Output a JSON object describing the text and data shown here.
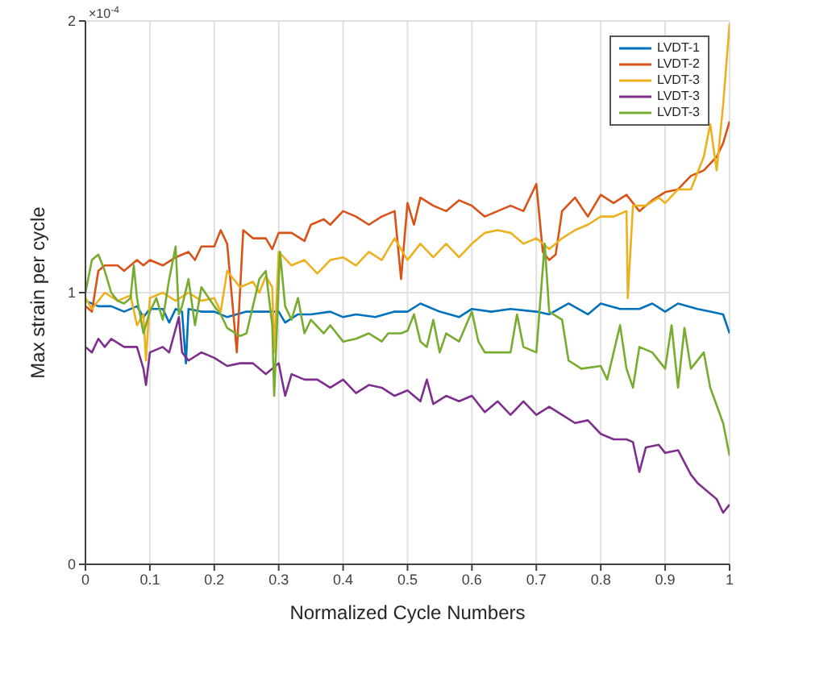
{
  "chart_data": {
    "type": "line",
    "xlabel": "Normalized Cycle Numbers",
    "ylabel": "Max strain per cycle",
    "annotations": [
      "×10$^{-4}$"
    ],
    "xlim": [
      0,
      1
    ],
    "xticks": [
      0,
      0.1,
      0.2,
      0.3,
      0.4,
      0.5,
      0.6,
      0.7,
      0.8,
      0.9,
      1
    ],
    "ylim": [
      0,
      2
    ],
    "yticks": [
      0,
      1,
      2
    ],
    "grid": true,
    "legend": "top right",
    "line_style": "solid",
    "marker": "none",
    "series": [
      {
        "name": "LVDT-1",
        "color": "#0072bd",
        "x": [
          0,
          0.02,
          0.04,
          0.06,
          0.08,
          0.09,
          0.1,
          0.12,
          0.13,
          0.14,
          0.15,
          0.156,
          0.16,
          0.18,
          0.2,
          0.22,
          0.25,
          0.28,
          0.3,
          0.31,
          0.33,
          0.35,
          0.38,
          0.4,
          0.42,
          0.45,
          0.48,
          0.5,
          0.52,
          0.55,
          0.58,
          0.6,
          0.63,
          0.66,
          0.7,
          0.72,
          0.75,
          0.78,
          0.8,
          0.83,
          0.86,
          0.88,
          0.9,
          0.92,
          0.95,
          0.97,
          0.99,
          1
        ],
        "values": [
          0.97,
          0.95,
          0.95,
          0.93,
          0.95,
          0.91,
          0.94,
          0.94,
          0.89,
          0.94,
          0.93,
          0.74,
          0.94,
          0.93,
          0.93,
          0.91,
          0.93,
          0.93,
          0.93,
          0.89,
          0.92,
          0.92,
          0.93,
          0.91,
          0.92,
          0.91,
          0.93,
          0.93,
          0.96,
          0.93,
          0.91,
          0.94,
          0.93,
          0.94,
          0.93,
          0.92,
          0.96,
          0.92,
          0.96,
          0.94,
          0.94,
          0.96,
          0.93,
          0.96,
          0.94,
          0.93,
          0.92,
          0.85
        ]
      },
      {
        "name": "LVDT-2",
        "color": "#d95319",
        "x": [
          0,
          0.01,
          0.02,
          0.03,
          0.05,
          0.06,
          0.08,
          0.09,
          0.1,
          0.12,
          0.14,
          0.16,
          0.17,
          0.18,
          0.2,
          0.21,
          0.22,
          0.235,
          0.245,
          0.26,
          0.28,
          0.29,
          0.3,
          0.32,
          0.34,
          0.35,
          0.37,
          0.38,
          0.4,
          0.42,
          0.44,
          0.46,
          0.48,
          0.49,
          0.5,
          0.51,
          0.52,
          0.54,
          0.56,
          0.58,
          0.6,
          0.62,
          0.64,
          0.66,
          0.68,
          0.7,
          0.71,
          0.72,
          0.73,
          0.74,
          0.76,
          0.78,
          0.8,
          0.82,
          0.84,
          0.86,
          0.88,
          0.9,
          0.92,
          0.94,
          0.96,
          0.98,
          0.99,
          1
        ],
        "values": [
          0.95,
          0.93,
          1.08,
          1.1,
          1.1,
          1.08,
          1.12,
          1.1,
          1.12,
          1.1,
          1.13,
          1.15,
          1.12,
          1.17,
          1.17,
          1.23,
          1.18,
          0.78,
          1.23,
          1.2,
          1.2,
          1.16,
          1.22,
          1.22,
          1.19,
          1.25,
          1.27,
          1.25,
          1.3,
          1.28,
          1.25,
          1.28,
          1.3,
          1.05,
          1.33,
          1.25,
          1.35,
          1.32,
          1.3,
          1.34,
          1.32,
          1.28,
          1.3,
          1.32,
          1.3,
          1.4,
          1.15,
          1.12,
          1.14,
          1.3,
          1.35,
          1.28,
          1.36,
          1.33,
          1.36,
          1.3,
          1.34,
          1.37,
          1.38,
          1.43,
          1.45,
          1.5,
          1.55,
          1.63
        ]
      },
      {
        "name": "LVDT-3",
        "color": "#edb120",
        "x": [
          0,
          0.01,
          0.03,
          0.05,
          0.07,
          0.08,
          0.09,
          0.094,
          0.1,
          0.12,
          0.14,
          0.16,
          0.18,
          0.2,
          0.21,
          0.22,
          0.24,
          0.26,
          0.27,
          0.28,
          0.29,
          0.293,
          0.3,
          0.32,
          0.34,
          0.36,
          0.38,
          0.4,
          0.42,
          0.44,
          0.46,
          0.48,
          0.5,
          0.52,
          0.54,
          0.56,
          0.58,
          0.6,
          0.62,
          0.64,
          0.66,
          0.68,
          0.7,
          0.72,
          0.74,
          0.76,
          0.78,
          0.8,
          0.82,
          0.84,
          0.842,
          0.85,
          0.87,
          0.89,
          0.9,
          0.92,
          0.94,
          0.96,
          0.97,
          0.98,
          0.99,
          1
        ],
        "values": [
          0.98,
          0.94,
          1.0,
          0.97,
          0.99,
          0.88,
          0.92,
          0.75,
          0.98,
          1.0,
          0.97,
          1.0,
          0.97,
          0.98,
          0.93,
          1.08,
          1.02,
          1.04,
          1.0,
          1.06,
          1.02,
          0.78,
          1.15,
          1.1,
          1.12,
          1.07,
          1.12,
          1.13,
          1.1,
          1.15,
          1.12,
          1.2,
          1.12,
          1.18,
          1.13,
          1.18,
          1.13,
          1.18,
          1.22,
          1.23,
          1.22,
          1.18,
          1.2,
          1.16,
          1.2,
          1.23,
          1.25,
          1.28,
          1.28,
          1.3,
          0.98,
          1.32,
          1.32,
          1.35,
          1.33,
          1.38,
          1.38,
          1.5,
          1.62,
          1.45,
          1.69,
          1.99
        ]
      },
      {
        "name": "LVDT-3",
        "color": "#7e2f8e",
        "x": [
          0,
          0.01,
          0.02,
          0.03,
          0.04,
          0.06,
          0.08,
          0.09,
          0.094,
          0.1,
          0.12,
          0.13,
          0.145,
          0.15,
          0.16,
          0.18,
          0.2,
          0.22,
          0.24,
          0.26,
          0.28,
          0.3,
          0.31,
          0.32,
          0.34,
          0.36,
          0.38,
          0.4,
          0.42,
          0.44,
          0.46,
          0.48,
          0.5,
          0.52,
          0.53,
          0.54,
          0.56,
          0.58,
          0.6,
          0.62,
          0.64,
          0.66,
          0.68,
          0.7,
          0.72,
          0.74,
          0.76,
          0.78,
          0.8,
          0.82,
          0.84,
          0.85,
          0.86,
          0.87,
          0.89,
          0.9,
          0.92,
          0.94,
          0.95,
          0.96,
          0.98,
          0.99,
          1
        ],
        "values": [
          0.8,
          0.78,
          0.83,
          0.8,
          0.83,
          0.8,
          0.8,
          0.72,
          0.66,
          0.78,
          0.8,
          0.78,
          0.91,
          0.78,
          0.75,
          0.78,
          0.76,
          0.73,
          0.74,
          0.74,
          0.7,
          0.74,
          0.62,
          0.7,
          0.68,
          0.68,
          0.65,
          0.68,
          0.63,
          0.66,
          0.65,
          0.62,
          0.64,
          0.6,
          0.68,
          0.59,
          0.62,
          0.6,
          0.62,
          0.56,
          0.6,
          0.55,
          0.6,
          0.55,
          0.58,
          0.55,
          0.52,
          0.53,
          0.48,
          0.46,
          0.46,
          0.45,
          0.34,
          0.43,
          0.44,
          0.41,
          0.42,
          0.33,
          0.3,
          0.28,
          0.24,
          0.19,
          0.22
        ]
      },
      {
        "name": "LVDT-3",
        "color": "#77ac30",
        "x": [
          0,
          0.01,
          0.02,
          0.03,
          0.04,
          0.05,
          0.06,
          0.07,
          0.075,
          0.08,
          0.09,
          0.1,
          0.11,
          0.12,
          0.13,
          0.14,
          0.145,
          0.15,
          0.16,
          0.17,
          0.18,
          0.2,
          0.21,
          0.22,
          0.24,
          0.25,
          0.27,
          0.28,
          0.29,
          0.293,
          0.302,
          0.31,
          0.32,
          0.33,
          0.34,
          0.35,
          0.37,
          0.38,
          0.4,
          0.42,
          0.44,
          0.46,
          0.47,
          0.49,
          0.5,
          0.51,
          0.52,
          0.53,
          0.54,
          0.55,
          0.56,
          0.58,
          0.6,
          0.61,
          0.62,
          0.64,
          0.66,
          0.67,
          0.68,
          0.7,
          0.713,
          0.72,
          0.74,
          0.75,
          0.77,
          0.8,
          0.81,
          0.83,
          0.84,
          0.85,
          0.86,
          0.88,
          0.9,
          0.91,
          0.92,
          0.93,
          0.94,
          0.96,
          0.97,
          0.99,
          1
        ],
        "values": [
          1.0,
          1.12,
          1.14,
          1.08,
          1.0,
          0.97,
          0.96,
          0.98,
          1.1,
          0.98,
          0.85,
          0.93,
          0.98,
          0.9,
          1.05,
          1.17,
          0.92,
          0.95,
          1.05,
          0.88,
          1.02,
          0.95,
          0.92,
          0.87,
          0.84,
          0.85,
          1.05,
          1.08,
          0.88,
          0.62,
          1.15,
          0.95,
          0.9,
          0.98,
          0.85,
          0.9,
          0.85,
          0.88,
          0.82,
          0.83,
          0.85,
          0.82,
          0.85,
          0.85,
          0.86,
          0.92,
          0.82,
          0.8,
          0.9,
          0.78,
          0.85,
          0.82,
          0.93,
          0.82,
          0.78,
          0.78,
          0.78,
          0.92,
          0.8,
          0.78,
          1.18,
          0.93,
          0.9,
          0.75,
          0.72,
          0.73,
          0.68,
          0.88,
          0.72,
          0.65,
          0.8,
          0.78,
          0.72,
          0.88,
          0.65,
          0.87,
          0.72,
          0.78,
          0.65,
          0.52,
          0.4
        ]
      }
    ]
  }
}
